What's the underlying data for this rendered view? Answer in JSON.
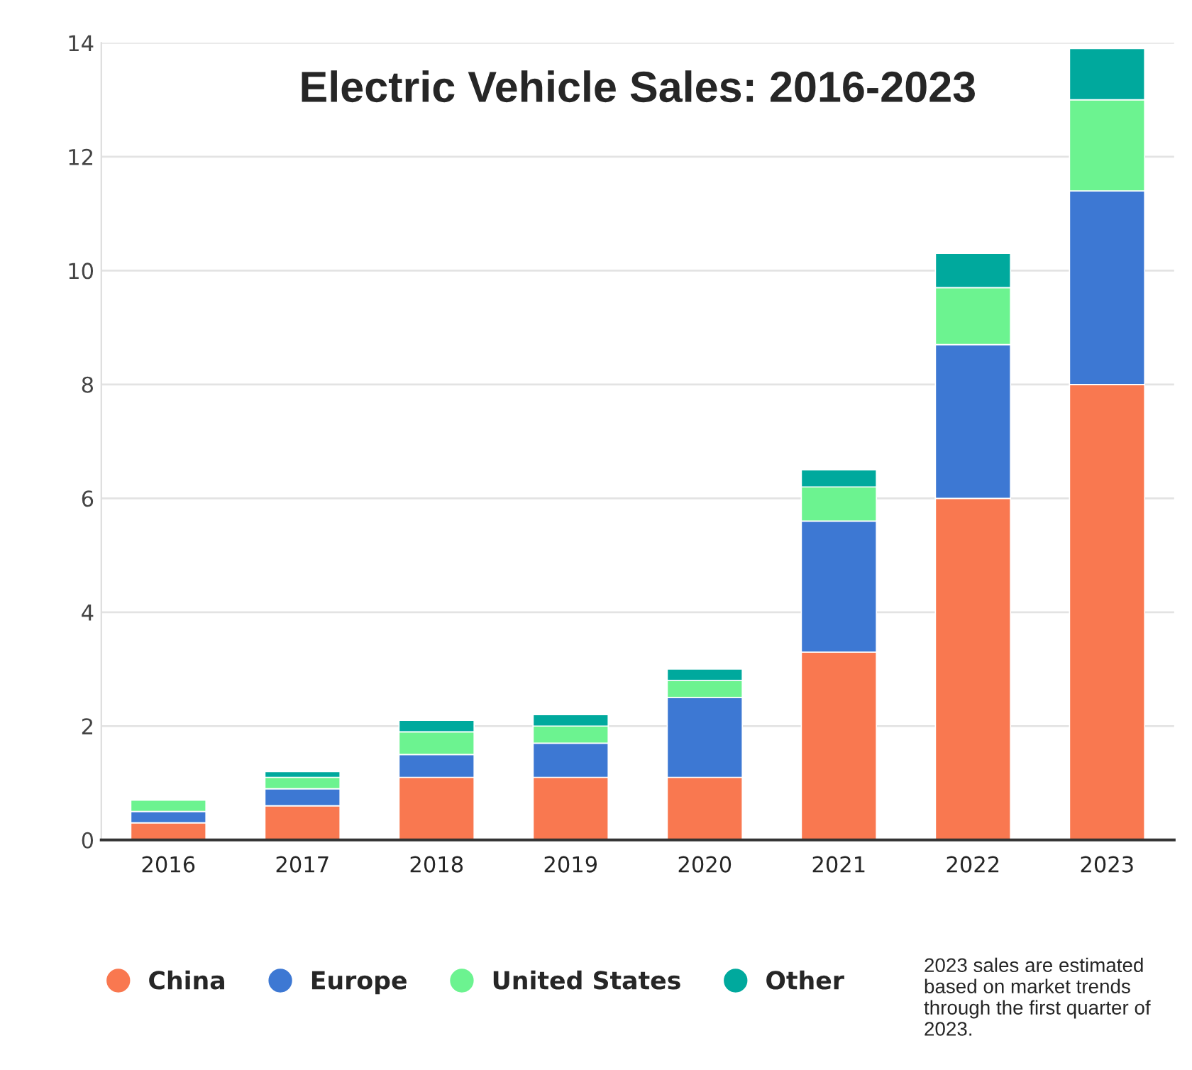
{
  "chart_data": {
    "type": "bar",
    "title": "Electric Vehicle Sales: 2016-2023",
    "stacked": true,
    "categories": [
      "2016",
      "2017",
      "2018",
      "2019",
      "2020",
      "2021",
      "2022",
      "2023"
    ],
    "series": [
      {
        "name": "China",
        "color": "#f97850",
        "values": [
          0.3,
          0.6,
          1.1,
          1.1,
          1.1,
          3.3,
          6.0,
          8.0
        ]
      },
      {
        "name": "Europe",
        "color": "#3d78d3",
        "values": [
          0.2,
          0.3,
          0.4,
          0.6,
          1.4,
          2.3,
          2.7,
          3.4
        ]
      },
      {
        "name": "United States",
        "color": "#6cf390",
        "values": [
          0.2,
          0.2,
          0.4,
          0.3,
          0.3,
          0.6,
          1.0,
          1.6
        ]
      },
      {
        "name": "Other",
        "color": "#00a99d",
        "values": [
          null,
          0.1,
          0.2,
          0.2,
          0.2,
          0.3,
          0.6,
          0.9
        ]
      }
    ],
    "ylim": [
      0,
      14
    ],
    "yticks": [
      0,
      2,
      4,
      6,
      8,
      10,
      12,
      14
    ],
    "grid": "y",
    "legend": "bottom",
    "marker": "circle",
    "annotations": [
      "2023 sales are estimated based on market trends through the first quarter of 2023."
    ]
  }
}
